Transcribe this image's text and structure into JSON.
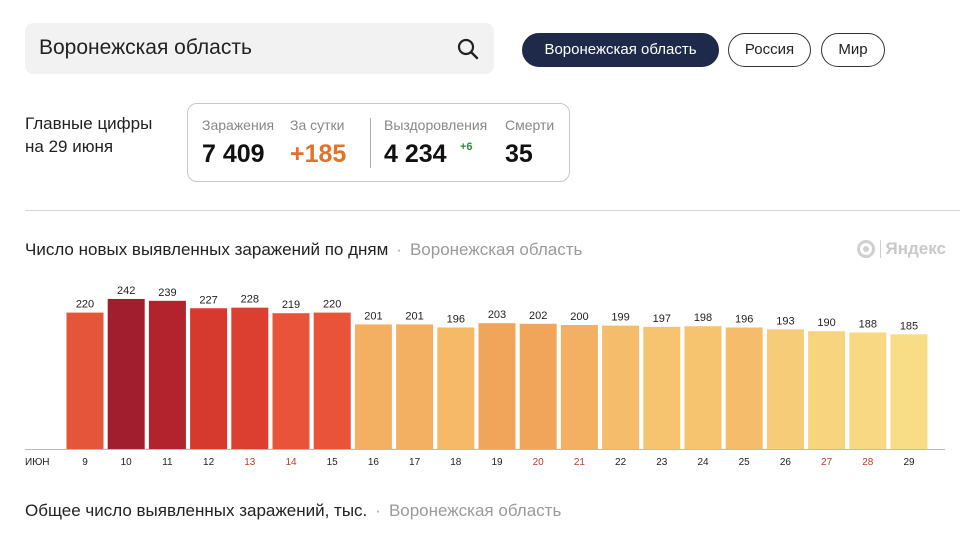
{
  "search": {
    "value": "Воронежская область"
  },
  "region_tabs": [
    {
      "label": "Воронежская область",
      "active": true
    },
    {
      "label": "Россия",
      "active": false
    },
    {
      "label": "Мир",
      "active": false
    }
  ],
  "main_figures": {
    "caption_line1": "Главные цифры",
    "caption_line2": "на 29 июня",
    "infections_label": "Заражения",
    "infections_value": "7 409",
    "daily_label": "За сутки",
    "daily_value": "+185",
    "recovered_label": "Выздоровления",
    "recovered_value": "4 234",
    "recovered_delta": "+6",
    "deaths_label": "Смерти",
    "deaths_value": "35"
  },
  "chart_section": {
    "title": "Число новых выявленных заражений по дням",
    "region": "Воронежская область",
    "brand": "Яндекс"
  },
  "second_section": {
    "title": "Общее число выявленных заражений, тыс.",
    "region": "Воронежская область"
  },
  "colors": {
    "accent_dark": "#1f2a4a",
    "orange": "#e57126",
    "green": "#2e8b3c",
    "weekend_tick": "#c0392b"
  },
  "chart_data": {
    "type": "bar",
    "title": "Число новых выявленных заражений по дням",
    "month_label": "ИЮН",
    "categories": [
      "9",
      "10",
      "11",
      "12",
      "13",
      "14",
      "15",
      "16",
      "17",
      "18",
      "19",
      "20",
      "21",
      "22",
      "23",
      "24",
      "25",
      "26",
      "27",
      "28",
      "29"
    ],
    "values": [
      220,
      242,
      239,
      227,
      228,
      219,
      220,
      201,
      201,
      196,
      203,
      202,
      200,
      199,
      197,
      198,
      196,
      193,
      190,
      188,
      185
    ],
    "weekend_days": [
      "13",
      "14",
      "20",
      "21",
      "27",
      "28"
    ],
    "bar_colors": [
      "#e4553a",
      "#a01e2e",
      "#b3232d",
      "#d63a2e",
      "#dc3f2f",
      "#e8533a",
      "#e8533a",
      "#f3b062",
      "#f3b062",
      "#f5b968",
      "#f0a55a",
      "#f0a55a",
      "#f3b062",
      "#f5bd6b",
      "#f6c36f",
      "#f6c36f",
      "#f5bd6b",
      "#f7cc78",
      "#f8d47f",
      "#f8d882",
      "#f8dc86"
    ],
    "ylim": [
      0,
      260
    ],
    "grid": false
  }
}
